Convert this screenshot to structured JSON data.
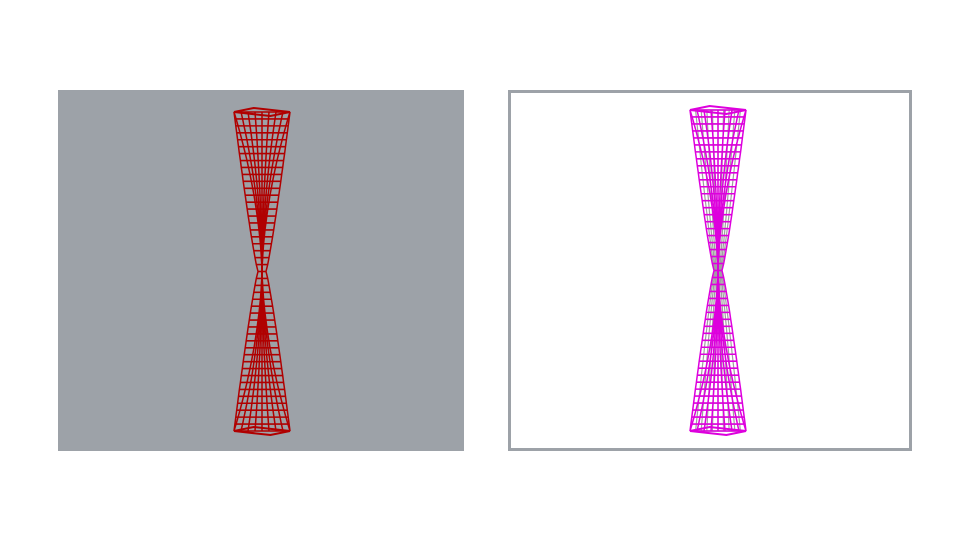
{
  "slide": {
    "background": "#ffffff"
  },
  "left_view": {
    "background": "#9da2a8",
    "model": "twisted-tower-wireframe",
    "wire_color": "#b00000",
    "inner_color": "#a0a0a0"
  },
  "right_view": {
    "background": "#ffffff",
    "frame_color": "#9da2a8",
    "model": "twisted-tower-wireframe",
    "wire_color": "#dd00dd",
    "inner_color": "#a0a0a0"
  }
}
